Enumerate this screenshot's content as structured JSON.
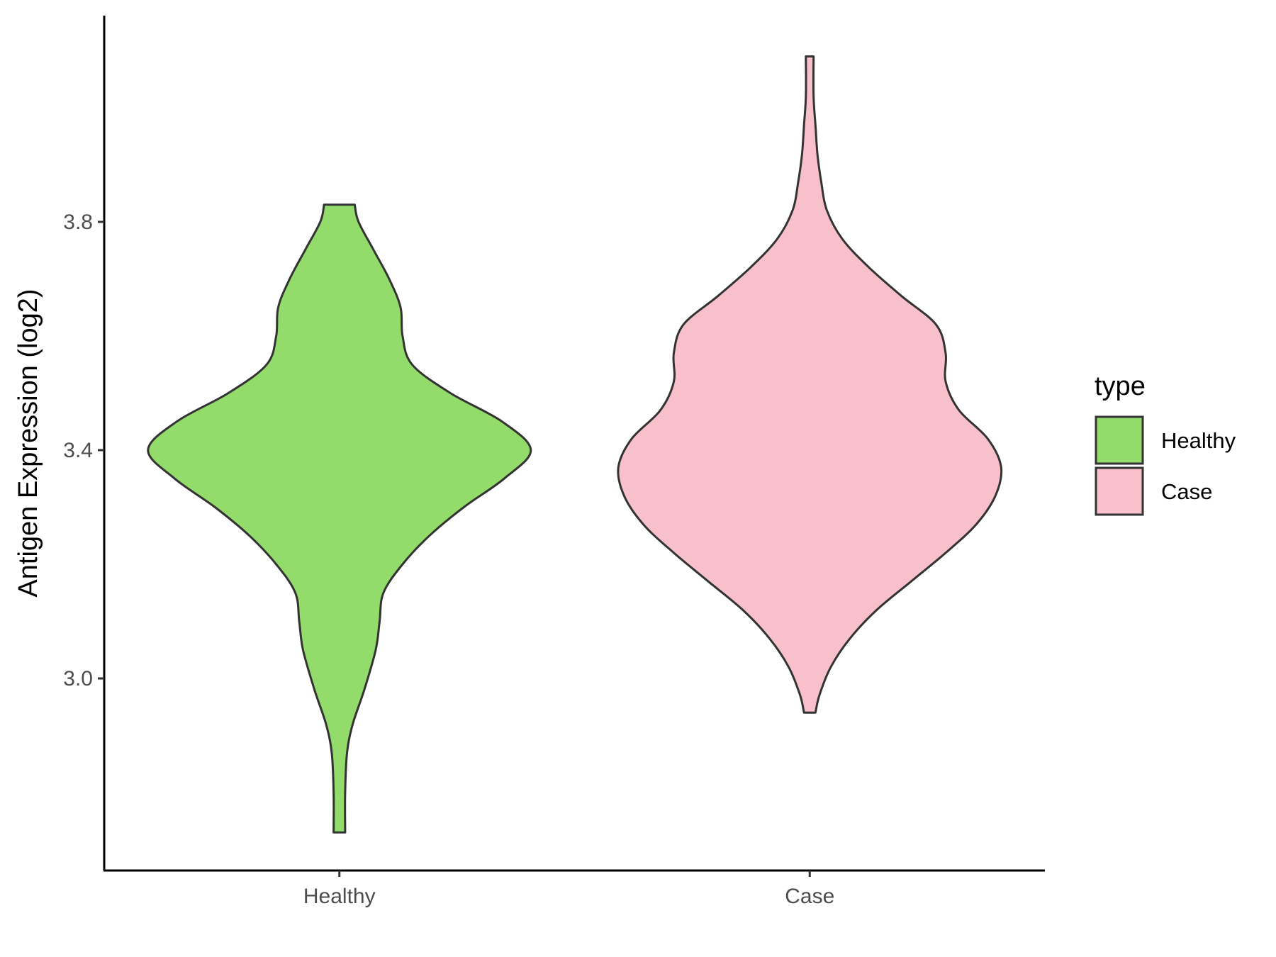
{
  "chart_data": {
    "type": "violin",
    "categories": [
      "Healthy",
      "Case"
    ],
    "ylabel": "Antigen Expression (log2)",
    "xlabel": "",
    "ylim": [
      2.66,
      4.16
    ],
    "yticks": [
      3.0,
      3.4,
      3.8
    ],
    "ytick_labels": [
      "3.0",
      "3.4",
      "3.8"
    ],
    "grid": false,
    "legend": {
      "title": "type",
      "position": "right",
      "entries": [
        {
          "label": "Healthy",
          "color": "#93DC6C"
        },
        {
          "label": "Case",
          "color": "#F7C0CB"
        }
      ]
    },
    "series": [
      {
        "category": "Healthy",
        "color": "#93DC6C",
        "min": 2.73,
        "max": 3.83,
        "density_profile": [
          [
            2.73,
            0.03
          ],
          [
            2.8,
            0.03
          ],
          [
            2.87,
            0.04
          ],
          [
            2.92,
            0.07
          ],
          [
            2.98,
            0.13
          ],
          [
            3.05,
            0.19
          ],
          [
            3.1,
            0.21
          ],
          [
            3.15,
            0.23
          ],
          [
            3.2,
            0.33
          ],
          [
            3.25,
            0.47
          ],
          [
            3.3,
            0.65
          ],
          [
            3.35,
            0.86
          ],
          [
            3.4,
            1.0
          ],
          [
            3.45,
            0.85
          ],
          [
            3.5,
            0.58
          ],
          [
            3.55,
            0.38
          ],
          [
            3.6,
            0.33
          ],
          [
            3.65,
            0.32
          ],
          [
            3.7,
            0.26
          ],
          [
            3.75,
            0.18
          ],
          [
            3.8,
            0.1
          ],
          [
            3.83,
            0.08
          ]
        ]
      },
      {
        "category": "Case",
        "color": "#F7C0CB",
        "min": 2.94,
        "max": 4.09,
        "density_profile": [
          [
            2.94,
            0.03
          ],
          [
            2.97,
            0.05
          ],
          [
            3.02,
            0.11
          ],
          [
            3.07,
            0.21
          ],
          [
            3.12,
            0.35
          ],
          [
            3.17,
            0.53
          ],
          [
            3.22,
            0.71
          ],
          [
            3.27,
            0.87
          ],
          [
            3.32,
            0.97
          ],
          [
            3.37,
            1.0
          ],
          [
            3.42,
            0.93
          ],
          [
            3.47,
            0.78
          ],
          [
            3.52,
            0.71
          ],
          [
            3.57,
            0.71
          ],
          [
            3.62,
            0.66
          ],
          [
            3.67,
            0.48
          ],
          [
            3.72,
            0.31
          ],
          [
            3.77,
            0.17
          ],
          [
            3.82,
            0.09
          ],
          [
            3.87,
            0.06
          ],
          [
            3.92,
            0.04
          ],
          [
            3.97,
            0.03
          ],
          [
            4.02,
            0.02
          ],
          [
            4.09,
            0.02
          ]
        ]
      }
    ]
  }
}
